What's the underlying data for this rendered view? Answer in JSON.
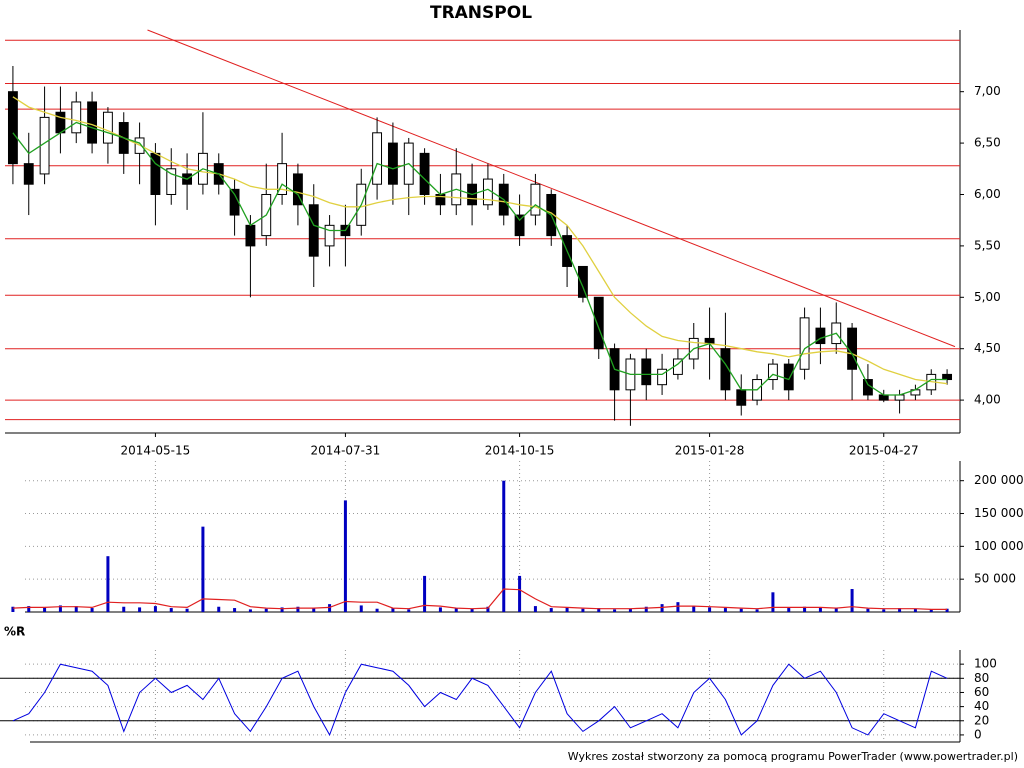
{
  "chart_data": [
    {
      "type": "candlestick",
      "title": "TRANSPOL",
      "categories": [
        null,
        null,
        null,
        null,
        null,
        null,
        null,
        null,
        null,
        "2014-05-15",
        null,
        null,
        null,
        null,
        null,
        null,
        null,
        null,
        null,
        null,
        null,
        "2014-07-31",
        null,
        null,
        null,
        null,
        null,
        null,
        null,
        null,
        null,
        null,
        "2014-10-15",
        null,
        null,
        null,
        null,
        null,
        null,
        null,
        null,
        null,
        null,
        null,
        "2015-01-28",
        null,
        null,
        null,
        null,
        null,
        null,
        null,
        null,
        null,
        null,
        "2015-04-27",
        null,
        null,
        null,
        null
      ],
      "open": [
        7.0,
        6.3,
        6.2,
        6.8,
        6.6,
        6.9,
        6.5,
        6.7,
        6.4,
        6.4,
        6.0,
        6.2,
        6.1,
        6.3,
        6.05,
        5.7,
        5.6,
        6.0,
        6.2,
        5.9,
        5.5,
        5.7,
        5.7,
        6.1,
        6.5,
        6.1,
        6.4,
        6.0,
        5.9,
        6.1,
        5.9,
        6.1,
        5.8,
        5.8,
        6.0,
        5.6,
        5.3,
        5.0,
        4.5,
        4.1,
        4.4,
        4.15,
        4.25,
        4.4,
        4.6,
        4.5,
        4.1,
        4.0,
        4.2,
        4.35,
        4.3,
        4.7,
        4.55,
        4.7,
        4.2,
        4.05,
        4.0,
        4.05,
        4.1,
        4.25
      ],
      "high": [
        7.25,
        6.6,
        7.05,
        7.05,
        7.0,
        7.0,
        6.85,
        6.8,
        6.7,
        6.5,
        6.45,
        6.4,
        6.8,
        6.4,
        6.15,
        5.8,
        6.3,
        6.6,
        6.3,
        6.1,
        5.8,
        5.9,
        6.25,
        6.75,
        6.7,
        6.55,
        6.45,
        6.2,
        6.45,
        6.3,
        6.3,
        6.2,
        6.0,
        6.2,
        6.05,
        5.7,
        5.3,
        5.0,
        4.55,
        4.45,
        4.5,
        4.45,
        4.5,
        4.75,
        4.9,
        4.85,
        4.25,
        4.25,
        4.4,
        4.4,
        4.9,
        4.9,
        4.95,
        4.75,
        4.35,
        4.1,
        4.1,
        4.15,
        4.3,
        4.3
      ],
      "low": [
        6.1,
        5.8,
        6.1,
        6.4,
        6.5,
        6.4,
        6.3,
        6.2,
        6.1,
        5.7,
        5.9,
        5.85,
        6.0,
        6.0,
        5.6,
        5.0,
        5.5,
        5.9,
        5.7,
        5.1,
        5.3,
        5.3,
        5.6,
        5.95,
        5.9,
        5.8,
        5.9,
        5.8,
        5.8,
        5.7,
        5.85,
        5.7,
        5.5,
        5.7,
        5.5,
        5.1,
        4.95,
        4.4,
        3.8,
        3.75,
        4.0,
        4.05,
        4.2,
        4.3,
        4.2,
        4.0,
        3.85,
        3.95,
        4.1,
        4.0,
        4.2,
        4.35,
        4.45,
        4.0,
        4.0,
        3.98,
        3.87,
        4.0,
        4.05,
        4.15
      ],
      "close": [
        6.3,
        6.1,
        6.75,
        6.6,
        6.9,
        6.5,
        6.8,
        6.4,
        6.55,
        6.0,
        6.25,
        6.1,
        6.4,
        6.1,
        5.8,
        5.5,
        6.0,
        6.3,
        5.9,
        5.4,
        5.7,
        5.6,
        6.1,
        6.6,
        6.1,
        6.5,
        6.0,
        5.9,
        6.2,
        5.9,
        6.15,
        5.8,
        5.6,
        6.1,
        5.6,
        5.3,
        5.0,
        4.5,
        4.1,
        4.4,
        4.15,
        4.3,
        4.4,
        4.6,
        4.55,
        4.1,
        3.95,
        4.2,
        4.35,
        4.1,
        4.8,
        4.55,
        4.75,
        4.3,
        4.05,
        4.0,
        4.05,
        4.1,
        4.25,
        4.2
      ],
      "series": [
        {
          "color": "#e0d040",
          "values": [
            6.95,
            6.85,
            6.8,
            6.75,
            6.72,
            6.68,
            6.62,
            6.55,
            6.48,
            6.4,
            6.32,
            6.25,
            6.22,
            6.2,
            6.15,
            6.08,
            6.05,
            6.05,
            6.02,
            5.98,
            5.92,
            5.88,
            5.88,
            5.92,
            5.95,
            5.97,
            5.98,
            5.98,
            5.97,
            5.96,
            5.95,
            5.93,
            5.9,
            5.88,
            5.82,
            5.7,
            5.5,
            5.25,
            5.0,
            4.85,
            4.72,
            4.62,
            4.58,
            4.56,
            4.55,
            4.53,
            4.5,
            4.47,
            4.45,
            4.42,
            4.45,
            4.47,
            4.48,
            4.45,
            4.38,
            4.3,
            4.25,
            4.2,
            4.18,
            4.16
          ]
        },
        {
          "color": "#20a020",
          "values": [
            6.6,
            6.4,
            6.5,
            6.6,
            6.7,
            6.65,
            6.6,
            6.55,
            6.5,
            6.3,
            6.2,
            6.15,
            6.25,
            6.2,
            6.0,
            5.7,
            5.8,
            6.1,
            6.0,
            5.7,
            5.65,
            5.65,
            5.9,
            6.3,
            6.25,
            6.3,
            6.15,
            6.0,
            6.05,
            6.0,
            6.05,
            5.95,
            5.75,
            5.9,
            5.8,
            5.45,
            5.1,
            4.7,
            4.3,
            4.25,
            4.25,
            4.25,
            4.35,
            4.5,
            4.55,
            4.35,
            4.1,
            4.1,
            4.25,
            4.2,
            4.5,
            4.6,
            4.65,
            4.45,
            4.15,
            4.05,
            4.05,
            4.1,
            4.2,
            4.2
          ]
        }
      ],
      "levels": [
        7.5,
        7.08,
        6.83,
        6.28,
        5.57,
        5.02,
        4.5,
        4.0,
        3.81
      ],
      "level_color": "#e02020",
      "trendline": {
        "x": [
          9,
          60
        ],
        "y": [
          7.6,
          4.52
        ]
      },
      "ylim": [
        3.68,
        7.6
      ],
      "yticks": [
        {
          "value": 4,
          "label": "4,00"
        },
        {
          "value": 4.5,
          "label": "4,50"
        },
        {
          "value": 5,
          "label": "5,00"
        },
        {
          "value": 5.5,
          "label": "5,50"
        },
        {
          "value": 6,
          "label": "6,00"
        },
        {
          "value": 6.5,
          "label": "6,50"
        },
        {
          "value": 7,
          "label": "7,00"
        }
      ]
    },
    {
      "type": "bar",
      "color": "#0000c0",
      "values": [
        8000,
        9000,
        7000,
        10000,
        9000,
        6000,
        85000,
        8000,
        7000,
        9000,
        6000,
        5000,
        130000,
        8000,
        6000,
        4000,
        5000,
        7000,
        8000,
        6000,
        12000,
        170000,
        10000,
        5000,
        6000,
        4000,
        55000,
        7000,
        6000,
        5000,
        8000,
        200000,
        55000,
        9000,
        6000,
        7000,
        5000,
        6000,
        4000,
        5000,
        8000,
        12000,
        15000,
        9000,
        7000,
        6000,
        5000,
        4000,
        30000,
        6000,
        8000,
        7000,
        6000,
        35000,
        5000,
        4000,
        6000,
        5000,
        4000,
        5000
      ],
      "series": [
        {
          "color": "#e02020",
          "values": [
            6000,
            7000,
            7000,
            8000,
            8000,
            7000,
            15000,
            14000,
            14000,
            13000,
            8000,
            7000,
            20000,
            19000,
            18000,
            8000,
            6000,
            5000,
            6000,
            6000,
            7000,
            16000,
            15000,
            15000,
            6000,
            5000,
            10000,
            9000,
            6000,
            5000,
            6000,
            35000,
            34000,
            20000,
            8000,
            7000,
            6000,
            5000,
            5000,
            5000,
            6000,
            7000,
            9000,
            9000,
            8000,
            7000,
            6000,
            5000,
            7000,
            7000,
            7000,
            7000,
            6000,
            8000,
            6000,
            5000,
            5000,
            5000,
            4000,
            4000
          ]
        }
      ],
      "ylim": [
        0,
        230000
      ],
      "yticks": [
        {
          "value": 50000,
          "label": "50 000"
        },
        {
          "value": 100000,
          "label": "100 000"
        },
        {
          "value": 150000,
          "label": "150 000"
        },
        {
          "value": 200000,
          "label": "200 000"
        }
      ],
      "grid": true
    },
    {
      "type": "line",
      "y_label": "%R",
      "color": "#0000e0",
      "values": [
        20,
        30,
        60,
        100,
        95,
        90,
        70,
        5,
        60,
        80,
        60,
        70,
        50,
        80,
        30,
        5,
        40,
        80,
        90,
        40,
        0,
        60,
        100,
        95,
        90,
        70,
        40,
        60,
        50,
        80,
        70,
        40,
        10,
        60,
        90,
        30,
        5,
        20,
        40,
        10,
        20,
        30,
        10,
        60,
        80,
        50,
        0,
        20,
        70,
        100,
        80,
        90,
        60,
        10,
        0,
        30,
        20,
        10,
        90,
        80
      ],
      "reference_lines": [
        20,
        80
      ],
      "ylim": [
        -10,
        120
      ],
      "yticks": [
        0,
        20,
        40,
        60,
        80,
        100
      ],
      "grid": true
    }
  ],
  "footer": "Wykres został stworzony za pomocą programu PowerTrader (www.powertrader.pl)"
}
